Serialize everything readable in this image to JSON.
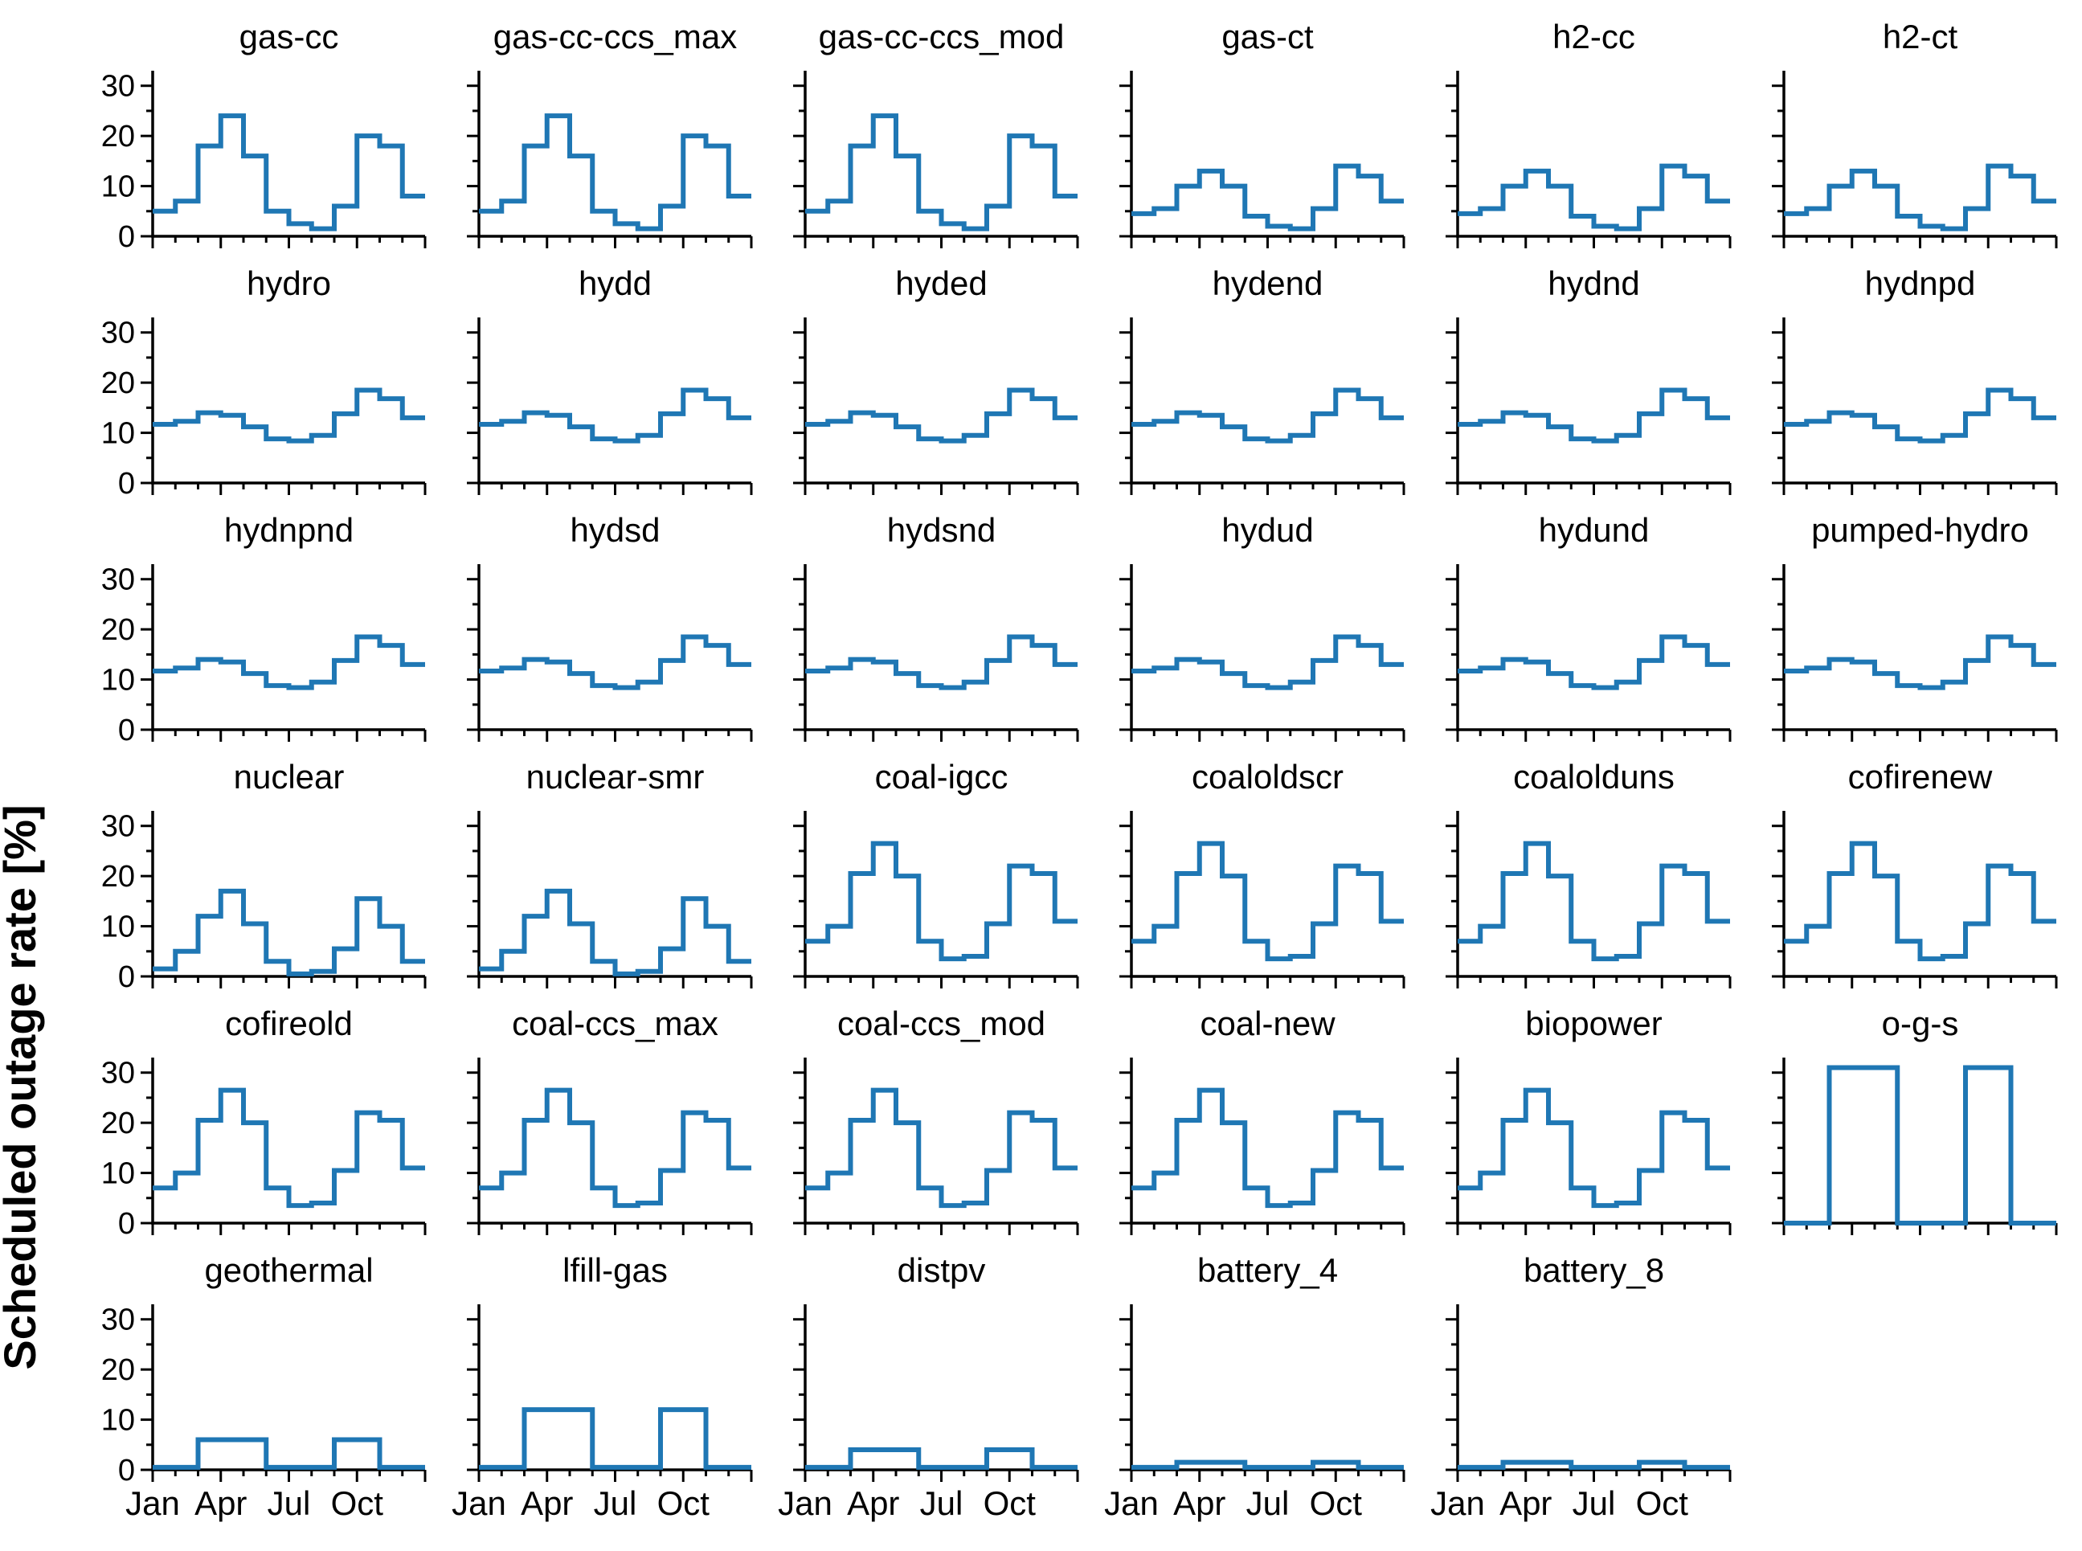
{
  "chart_data": {
    "type": "line",
    "subtype": "step-post",
    "title": "",
    "ylabel": "Scheduled outage rate [%]",
    "xlabel": "",
    "x": [
      "Jan",
      "Feb",
      "Mar",
      "Apr",
      "May",
      "Jun",
      "Jul",
      "Aug",
      "Sep",
      "Oct",
      "Nov",
      "Dec"
    ],
    "xtick_labels_shown": [
      "Jan",
      "Apr",
      "Jul",
      "Oct"
    ],
    "ylim": [
      0,
      33
    ],
    "yticks": [
      0,
      10,
      20,
      30
    ],
    "yticks_minor": [
      5,
      15,
      25
    ],
    "grid": false,
    "legend": "none",
    "line_color": "#1f77b4",
    "axis_color": "#000000",
    "grid_layout": {
      "rows": 6,
      "cols": 6,
      "empty_cells": [
        [
          5,
          5
        ]
      ]
    },
    "patterns": {
      "gas_cc": [
        5,
        7,
        18,
        24,
        16,
        5,
        2.5,
        1.5,
        6,
        20,
        18,
        8
      ],
      "gas_ct": [
        4.5,
        5.5,
        10,
        13,
        10,
        4,
        2,
        1.5,
        5.5,
        14,
        12,
        7
      ],
      "hydro": [
        11.7,
        12.3,
        14,
        13.5,
        11.2,
        8.8,
        8.4,
        9.5,
        13.8,
        18.5,
        16.8,
        13
      ],
      "nuclear": [
        1.5,
        5,
        12,
        17,
        10.5,
        3,
        0.5,
        1,
        5.5,
        15.5,
        10,
        3
      ],
      "coal": [
        7,
        10,
        20.5,
        26.5,
        20,
        7,
        3.5,
        4,
        10.5,
        22,
        20.5,
        11
      ],
      "o_g_s": [
        0,
        0,
        31,
        31,
        31,
        0,
        0,
        0,
        31,
        31,
        0,
        0
      ],
      "geothermal": [
        0.5,
        0.5,
        6,
        6,
        6,
        0.5,
        0.5,
        0.5,
        6,
        6,
        0.5,
        0.5
      ],
      "lfill_gas": [
        0.5,
        0.5,
        12,
        12,
        12,
        0.5,
        0.5,
        0.5,
        12,
        12,
        0.5,
        0.5
      ],
      "distpv": [
        0.5,
        0.5,
        4,
        4,
        4,
        0.5,
        0.5,
        0.5,
        4,
        4,
        0.5,
        0.5
      ],
      "battery": [
        0.5,
        0.5,
        1.5,
        1.5,
        1.5,
        0.5,
        0.5,
        0.5,
        1.5,
        1.5,
        0.5,
        0.5
      ]
    },
    "series": [
      {
        "name": "gas-cc",
        "pattern": "gas_cc"
      },
      {
        "name": "gas-cc-ccs_max",
        "pattern": "gas_cc"
      },
      {
        "name": "gas-cc-ccs_mod",
        "pattern": "gas_cc"
      },
      {
        "name": "gas-ct",
        "pattern": "gas_ct"
      },
      {
        "name": "h2-cc",
        "pattern": "gas_ct"
      },
      {
        "name": "h2-ct",
        "pattern": "gas_ct"
      },
      {
        "name": "hydro",
        "pattern": "hydro"
      },
      {
        "name": "hydd",
        "pattern": "hydro"
      },
      {
        "name": "hyded",
        "pattern": "hydro"
      },
      {
        "name": "hydend",
        "pattern": "hydro"
      },
      {
        "name": "hydnd",
        "pattern": "hydro"
      },
      {
        "name": "hydnpd",
        "pattern": "hydro"
      },
      {
        "name": "hydnpnd",
        "pattern": "hydro"
      },
      {
        "name": "hydsd",
        "pattern": "hydro"
      },
      {
        "name": "hydsnd",
        "pattern": "hydro"
      },
      {
        "name": "hydud",
        "pattern": "hydro"
      },
      {
        "name": "hydund",
        "pattern": "hydro"
      },
      {
        "name": "pumped-hydro",
        "pattern": "hydro"
      },
      {
        "name": "nuclear",
        "pattern": "nuclear"
      },
      {
        "name": "nuclear-smr",
        "pattern": "nuclear"
      },
      {
        "name": "coal-igcc",
        "pattern": "coal"
      },
      {
        "name": "coaloldscr",
        "pattern": "coal"
      },
      {
        "name": "coalolduns",
        "pattern": "coal"
      },
      {
        "name": "cofirenew",
        "pattern": "coal"
      },
      {
        "name": "cofireold",
        "pattern": "coal"
      },
      {
        "name": "coal-ccs_max",
        "pattern": "coal"
      },
      {
        "name": "coal-ccs_mod",
        "pattern": "coal"
      },
      {
        "name": "coal-new",
        "pattern": "coal"
      },
      {
        "name": "biopower",
        "pattern": "coal"
      },
      {
        "name": "o-g-s",
        "pattern": "o_g_s"
      },
      {
        "name": "geothermal",
        "pattern": "geothermal"
      },
      {
        "name": "lfill-gas",
        "pattern": "lfill_gas"
      },
      {
        "name": "distpv",
        "pattern": "distpv"
      },
      {
        "name": "battery_4",
        "pattern": "battery"
      },
      {
        "name": "battery_8",
        "pattern": "battery"
      }
    ]
  }
}
